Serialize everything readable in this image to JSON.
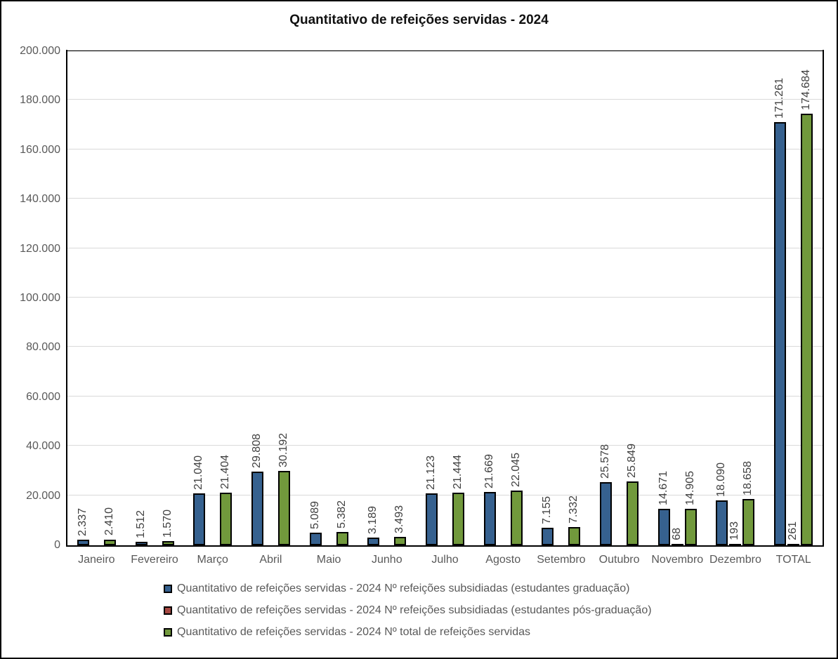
{
  "chart_data": {
    "type": "bar",
    "title": "Quantitativo de refeições servidas - 2024",
    "categories": [
      "Janeiro",
      "Fevereiro",
      "Março",
      "Abril",
      "Maio",
      "Junho",
      "Julho",
      "Agosto",
      "Setembro",
      "Outubro",
      "Novembro",
      "Dezembro",
      "TOTAL"
    ],
    "series": [
      {
        "key": "refeicoes-subsidiadas-graduacao",
        "name": "Quantitativo de refeições servidas - 2024 Nº refeições subsidiadas (estudantes graduação)",
        "color": "#36618F",
        "values": [
          2337,
          1512,
          21040,
          29808,
          5089,
          3189,
          21123,
          21669,
          7155,
          25578,
          14671,
          18090,
          171261
        ]
      },
      {
        "key": "refeicoes-subsidiadas-pos-graduacao",
        "name": "Quantitativo de refeições servidas - 2024 Nº refeições subsidiadas (estudantes pós-graduação)",
        "color": "#A64842",
        "values": [
          null,
          null,
          null,
          null,
          null,
          null,
          null,
          null,
          null,
          null,
          68,
          193,
          261
        ]
      },
      {
        "key": "total-refeicoes-servidas",
        "name": "Quantitativo de refeições servidas - 2024 Nº total de refeições servidas",
        "color": "#71993C",
        "values": [
          2410,
          1570,
          21404,
          30192,
          5382,
          3493,
          21444,
          22045,
          7332,
          25849,
          14905,
          18658,
          174684
        ]
      }
    ],
    "ylim": [
      0,
      200000
    ],
    "ytick_step": 20000,
    "ytick_labels": [
      "0",
      "20.000",
      "40.000",
      "60.000",
      "80.000",
      "100.000",
      "120.000",
      "140.000",
      "160.000",
      "180.000",
      "200.000"
    ],
    "grid": true,
    "legend_position": "bottom-left",
    "gridline_color": "#d9d9d9",
    "bar_border_color": "#000000",
    "axis_label_color": "#595959",
    "data_label_color": "#404040"
  }
}
